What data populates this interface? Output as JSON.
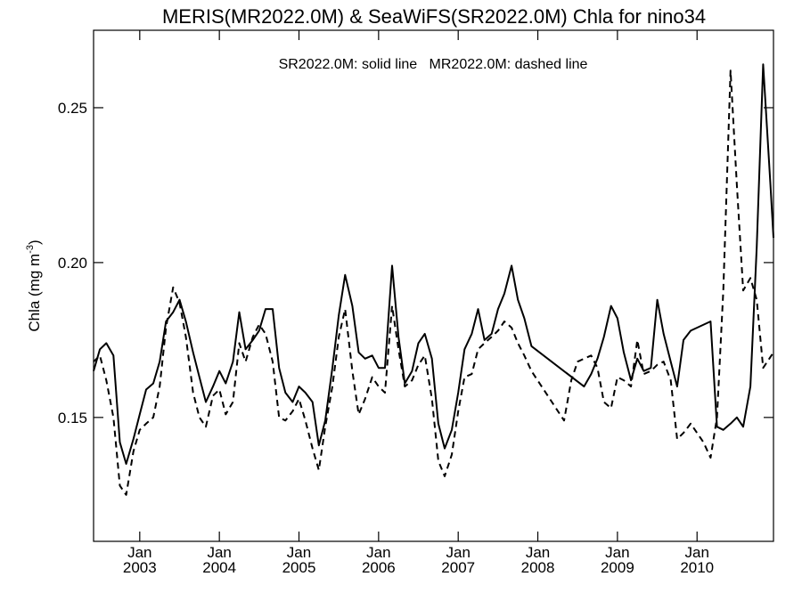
{
  "chart_data": {
    "type": "line",
    "title": "MERIS(MR2022.0M) & SeaWiFS(SR2022.0M)  Chla for nino34",
    "annotation": "SR2022.0M: solid line   MR2022.0M: dashed line",
    "ylabel": {
      "base": "Chla (mg m",
      "sup": "-3",
      "close": ")"
    },
    "xlim": [
      2002.42,
      2010.96
    ],
    "ylim": [
      0.11,
      0.275
    ],
    "y_ticks": [
      0.15,
      0.2,
      0.25
    ],
    "y_tick_labels": [
      "0.15",
      "0.20",
      "0.25"
    ],
    "x_ticks": [
      {
        "month": "Jan",
        "year": "2003",
        "x": 2003.0
      },
      {
        "month": "Jan",
        "year": "2004",
        "x": 2004.0
      },
      {
        "month": "Jan",
        "year": "2005",
        "x": 2005.0
      },
      {
        "month": "Jan",
        "year": "2006",
        "x": 2006.0
      },
      {
        "month": "Jan",
        "year": "2007",
        "x": 2007.0
      },
      {
        "month": "Jan",
        "year": "2008",
        "x": 2008.0
      },
      {
        "month": "Jan",
        "year": "2009",
        "x": 2009.0
      },
      {
        "month": "Jan",
        "year": "2010",
        "x": 2010.0
      }
    ],
    "grid": false,
    "legend": "annotation text at top-center",
    "series": [
      {
        "name": "SR2022.0M",
        "style": "solid",
        "color": "#000000",
        "points": [
          [
            2002.42,
            0.165
          ],
          [
            2002.5,
            0.172
          ],
          [
            2002.58,
            0.174
          ],
          [
            2002.67,
            0.17
          ],
          [
            2002.75,
            0.142
          ],
          [
            2002.83,
            0.135
          ],
          [
            2002.92,
            0.143
          ],
          [
            2003.0,
            0.151
          ],
          [
            2003.08,
            0.159
          ],
          [
            2003.17,
            0.161
          ],
          [
            2003.25,
            0.168
          ],
          [
            2003.33,
            0.181
          ],
          [
            2003.42,
            0.184
          ],
          [
            2003.5,
            0.188
          ],
          [
            2003.58,
            0.181
          ],
          [
            2003.67,
            0.171
          ],
          [
            2003.75,
            0.163
          ],
          [
            2003.83,
            0.155
          ],
          [
            2003.92,
            0.16
          ],
          [
            2004.0,
            0.165
          ],
          [
            2004.08,
            0.161
          ],
          [
            2004.17,
            0.168
          ],
          [
            2004.25,
            0.184
          ],
          [
            2004.33,
            0.172
          ],
          [
            2004.42,
            0.175
          ],
          [
            2004.5,
            0.178
          ],
          [
            2004.58,
            0.185
          ],
          [
            2004.67,
            0.185
          ],
          [
            2004.75,
            0.166
          ],
          [
            2004.83,
            0.158
          ],
          [
            2004.92,
            0.155
          ],
          [
            2005.0,
            0.16
          ],
          [
            2005.08,
            0.158
          ],
          [
            2005.17,
            0.155
          ],
          [
            2005.25,
            0.141
          ],
          [
            2005.33,
            0.149
          ],
          [
            2005.42,
            0.166
          ],
          [
            2005.5,
            0.183
          ],
          [
            2005.58,
            0.196
          ],
          [
            2005.67,
            0.186
          ],
          [
            2005.75,
            0.171
          ],
          [
            2005.83,
            0.169
          ],
          [
            2005.92,
            0.17
          ],
          [
            2006.0,
            0.166
          ],
          [
            2006.08,
            0.166
          ],
          [
            2006.17,
            0.199
          ],
          [
            2006.25,
            0.176
          ],
          [
            2006.33,
            0.161
          ],
          [
            2006.42,
            0.165
          ],
          [
            2006.5,
            0.174
          ],
          [
            2006.58,
            0.177
          ],
          [
            2006.67,
            0.169
          ],
          [
            2006.75,
            0.148
          ],
          [
            2006.83,
            0.14
          ],
          [
            2006.92,
            0.146
          ],
          [
            2007.0,
            0.158
          ],
          [
            2007.08,
            0.172
          ],
          [
            2007.17,
            0.177
          ],
          [
            2007.25,
            0.185
          ],
          [
            2007.33,
            0.175
          ],
          [
            2007.42,
            0.177
          ],
          [
            2007.5,
            0.185
          ],
          [
            2007.58,
            0.19
          ],
          [
            2007.67,
            0.199
          ],
          [
            2007.75,
            0.188
          ],
          [
            2007.83,
            0.182
          ],
          [
            2007.92,
            0.173
          ],
          [
            2008.58,
            0.16
          ],
          [
            2008.67,
            0.164
          ],
          [
            2008.75,
            0.169
          ],
          [
            2008.83,
            0.176
          ],
          [
            2008.92,
            0.186
          ],
          [
            2009.0,
            0.182
          ],
          [
            2009.08,
            0.171
          ],
          [
            2009.17,
            0.162
          ],
          [
            2009.25,
            0.169
          ],
          [
            2009.33,
            0.165
          ],
          [
            2009.42,
            0.166
          ],
          [
            2009.5,
            0.188
          ],
          [
            2009.58,
            0.177
          ],
          [
            2009.67,
            0.168
          ],
          [
            2009.75,
            0.16
          ],
          [
            2009.83,
            0.175
          ],
          [
            2009.92,
            0.178
          ],
          [
            2010.17,
            0.181
          ],
          [
            2010.25,
            0.147
          ],
          [
            2010.33,
            0.146
          ],
          [
            2010.42,
            0.148
          ],
          [
            2010.5,
            0.15
          ],
          [
            2010.58,
            0.147
          ],
          [
            2010.67,
            0.16
          ],
          [
            2010.75,
            0.205
          ],
          [
            2010.83,
            0.264
          ],
          [
            2010.92,
            0.226
          ],
          [
            2010.96,
            0.208
          ]
        ]
      },
      {
        "name": "MR2022.0M",
        "style": "dashed",
        "color": "#000000",
        "points": [
          [
            2002.42,
            0.168
          ],
          [
            2002.5,
            0.17
          ],
          [
            2002.58,
            0.162
          ],
          [
            2002.67,
            0.15
          ],
          [
            2002.75,
            0.128
          ],
          [
            2002.83,
            0.125
          ],
          [
            2002.92,
            0.139
          ],
          [
            2003.0,
            0.146
          ],
          [
            2003.08,
            0.148
          ],
          [
            2003.17,
            0.15
          ],
          [
            2003.25,
            0.16
          ],
          [
            2003.33,
            0.179
          ],
          [
            2003.42,
            0.192
          ],
          [
            2003.5,
            0.187
          ],
          [
            2003.58,
            0.176
          ],
          [
            2003.67,
            0.158
          ],
          [
            2003.75,
            0.15
          ],
          [
            2003.83,
            0.147
          ],
          [
            2003.92,
            0.157
          ],
          [
            2004.0,
            0.159
          ],
          [
            2004.08,
            0.151
          ],
          [
            2004.17,
            0.155
          ],
          [
            2004.25,
            0.174
          ],
          [
            2004.33,
            0.168
          ],
          [
            2004.42,
            0.176
          ],
          [
            2004.5,
            0.18
          ],
          [
            2004.58,
            0.177
          ],
          [
            2004.67,
            0.168
          ],
          [
            2004.75,
            0.15
          ],
          [
            2004.83,
            0.149
          ],
          [
            2004.92,
            0.152
          ],
          [
            2005.0,
            0.156
          ],
          [
            2005.08,
            0.149
          ],
          [
            2005.17,
            0.14
          ],
          [
            2005.25,
            0.133
          ],
          [
            2005.33,
            0.147
          ],
          [
            2005.42,
            0.16
          ],
          [
            2005.5,
            0.176
          ],
          [
            2005.58,
            0.185
          ],
          [
            2005.67,
            0.165
          ],
          [
            2005.75,
            0.151
          ],
          [
            2005.83,
            0.156
          ],
          [
            2005.92,
            0.163
          ],
          [
            2006.0,
            0.16
          ],
          [
            2006.08,
            0.158
          ],
          [
            2006.17,
            0.186
          ],
          [
            2006.25,
            0.172
          ],
          [
            2006.33,
            0.16
          ],
          [
            2006.42,
            0.162
          ],
          [
            2006.5,
            0.167
          ],
          [
            2006.58,
            0.17
          ],
          [
            2006.67,
            0.156
          ],
          [
            2006.75,
            0.136
          ],
          [
            2006.83,
            0.131
          ],
          [
            2006.92,
            0.138
          ],
          [
            2007.0,
            0.152
          ],
          [
            2007.08,
            0.163
          ],
          [
            2007.17,
            0.164
          ],
          [
            2007.25,
            0.172
          ],
          [
            2007.33,
            0.174
          ],
          [
            2007.42,
            0.176
          ],
          [
            2007.5,
            0.178
          ],
          [
            2007.58,
            0.181
          ],
          [
            2007.67,
            0.179
          ],
          [
            2007.75,
            0.174
          ],
          [
            2007.83,
            0.17
          ],
          [
            2007.92,
            0.165
          ],
          [
            2008.33,
            0.149
          ],
          [
            2008.42,
            0.162
          ],
          [
            2008.5,
            0.168
          ],
          [
            2008.58,
            0.169
          ],
          [
            2008.67,
            0.17
          ],
          [
            2008.75,
            0.166
          ],
          [
            2008.83,
            0.155
          ],
          [
            2008.92,
            0.153
          ],
          [
            2009.0,
            0.163
          ],
          [
            2009.08,
            0.162
          ],
          [
            2009.17,
            0.16
          ],
          [
            2009.25,
            0.175
          ],
          [
            2009.33,
            0.164
          ],
          [
            2009.42,
            0.165
          ],
          [
            2009.5,
            0.167
          ],
          [
            2009.58,
            0.168
          ],
          [
            2009.67,
            0.162
          ],
          [
            2009.75,
            0.143
          ],
          [
            2009.83,
            0.145
          ],
          [
            2009.92,
            0.148
          ],
          [
            2010.0,
            0.145
          ],
          [
            2010.08,
            0.142
          ],
          [
            2010.17,
            0.137
          ],
          [
            2010.25,
            0.15
          ],
          [
            2010.33,
            0.191
          ],
          [
            2010.42,
            0.262
          ],
          [
            2010.5,
            0.225
          ],
          [
            2010.58,
            0.191
          ],
          [
            2010.67,
            0.195
          ],
          [
            2010.75,
            0.188
          ],
          [
            2010.83,
            0.166
          ],
          [
            2010.96,
            0.171
          ]
        ]
      }
    ]
  }
}
